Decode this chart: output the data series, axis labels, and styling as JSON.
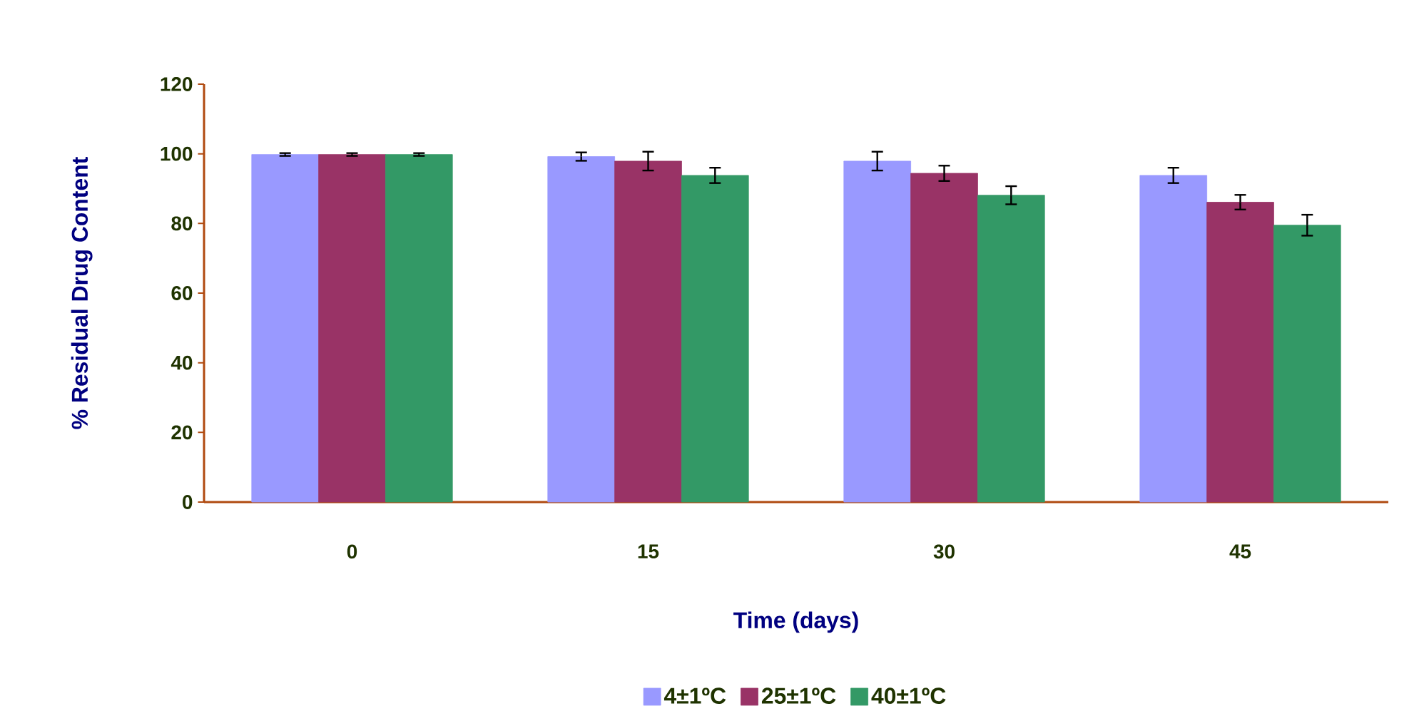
{
  "chart_data": {
    "type": "bar",
    "xlabel": "Time (days)",
    "ylabel": "% Residual Drug Content",
    "categories": [
      "0",
      "15",
      "30",
      "45"
    ],
    "series": [
      {
        "name": "4±1ºC",
        "color": "#9999ff",
        "values": [
          99.8,
          99.2,
          97.9,
          93.8
        ],
        "errors": [
          0.4,
          1.2,
          2.7,
          2.2
        ]
      },
      {
        "name": "25±1ºC",
        "color": "#993366",
        "values": [
          99.8,
          97.9,
          94.4,
          86.1
        ],
        "errors": [
          0.4,
          2.7,
          2.2,
          2.1
        ]
      },
      {
        "name": "40±1ºC",
        "color": "#339966",
        "values": [
          99.8,
          93.8,
          88.1,
          79.5
        ],
        "errors": [
          0.4,
          2.2,
          2.6,
          3.0
        ]
      }
    ],
    "ylim": [
      0,
      120
    ],
    "yticks": [
      0,
      20,
      40,
      60,
      80,
      100,
      120
    ],
    "legend": "bottom"
  }
}
